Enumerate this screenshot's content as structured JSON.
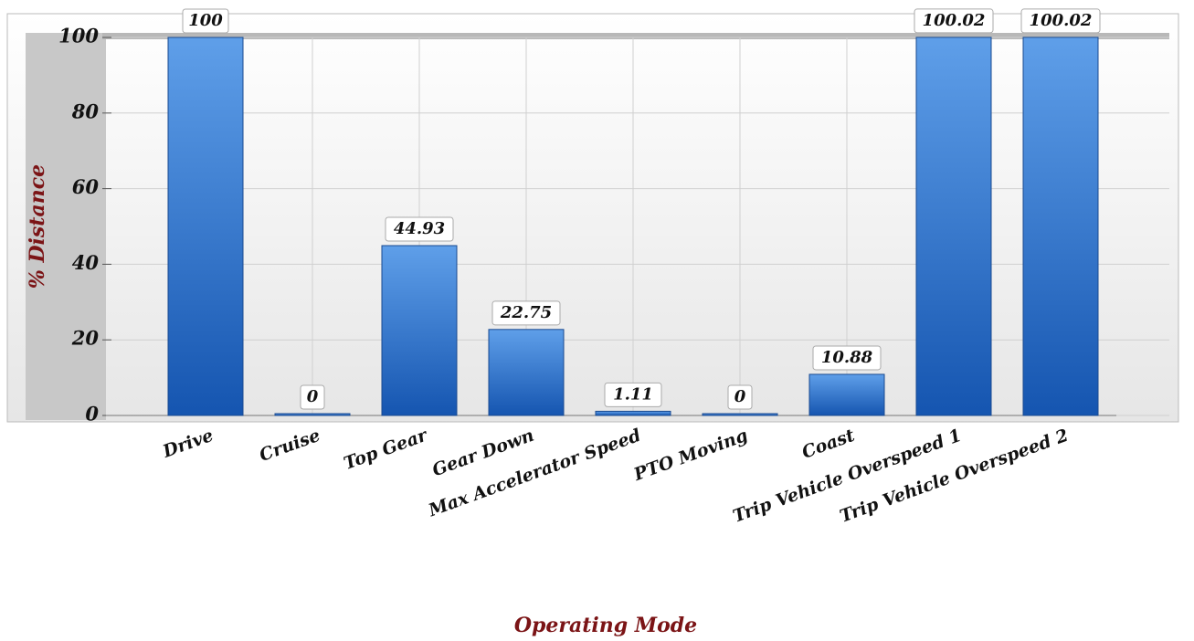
{
  "chart_data": {
    "type": "bar",
    "x_label": "Operating Mode",
    "y_label": "% Distance",
    "categories": [
      "Drive",
      "Cruise",
      "Top Gear",
      "Gear Down",
      "Max Accelerator Speed",
      "PTO Moving",
      "Coast",
      "Trip Vehicle Overspeed 1",
      "Trip Vehicle Overspeed 2"
    ],
    "values": [
      100,
      0,
      44.93,
      22.75,
      1.11,
      0,
      10.88,
      100.02,
      100.02
    ],
    "color": "#2f6fcc",
    "ylim": [
      0,
      100
    ],
    "yticks": [
      0,
      20,
      40,
      60,
      80,
      100
    ],
    "grid": true
  }
}
